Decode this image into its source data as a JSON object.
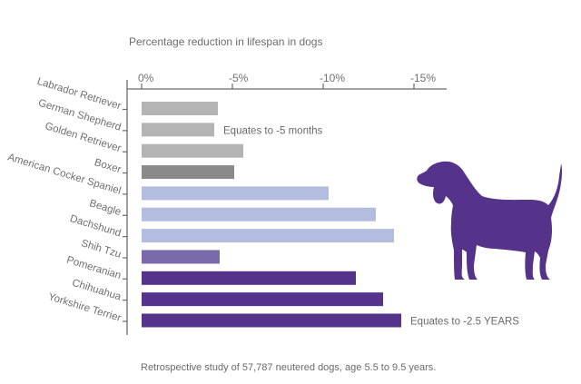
{
  "chart_data": {
    "type": "bar",
    "orientation": "horizontal",
    "title": "Percentage reduction in lifespan in dogs",
    "xlabel": "",
    "ylabel": "",
    "xlim": [
      0,
      -16.5
    ],
    "x_ticks": [
      0,
      -5,
      -10,
      -15
    ],
    "x_tick_labels": [
      "0%",
      "-5%",
      "-10%",
      "-15%"
    ],
    "x_axis_position": "top",
    "grid": false,
    "legend": null,
    "categories": [
      "Labrador Retriever",
      "German Shepherd",
      "Golden Retriever",
      "Boxer",
      "American Cocker Spaniel",
      "Beagle",
      "Dachshund",
      "Shih Tzu",
      "Pomeranian",
      "Chihuahua",
      "Yorkshire Terrier"
    ],
    "values": [
      -4.2,
      -4.0,
      -5.6,
      -5.1,
      -10.3,
      -12.9,
      -13.9,
      -4.3,
      -11.8,
      -13.3,
      -14.3
    ],
    "bar_colors": [
      "#b4b4b4",
      "#b4b4b4",
      "#b4b4b4",
      "#8a8a8a",
      "#b2bddf",
      "#b2bddf",
      "#b2bddf",
      "#7b6aab",
      "#55338a",
      "#55338a",
      "#55338a"
    ],
    "annotations": [
      {
        "category": "German Shepherd",
        "text": "Equates to -5 months"
      },
      {
        "category": "Yorkshire Terrier",
        "text": "Equates to -2.5 YEARS"
      }
    ],
    "footnote": "Retrospective study of 57,787 neutered dogs, age 5.5 to 9.5 years."
  },
  "illustration": {
    "icon": "dog-silhouette-icon",
    "color": "#55338a"
  },
  "colors": {
    "axis": "#6b6b6b",
    "text": "#6d6d6d"
  }
}
